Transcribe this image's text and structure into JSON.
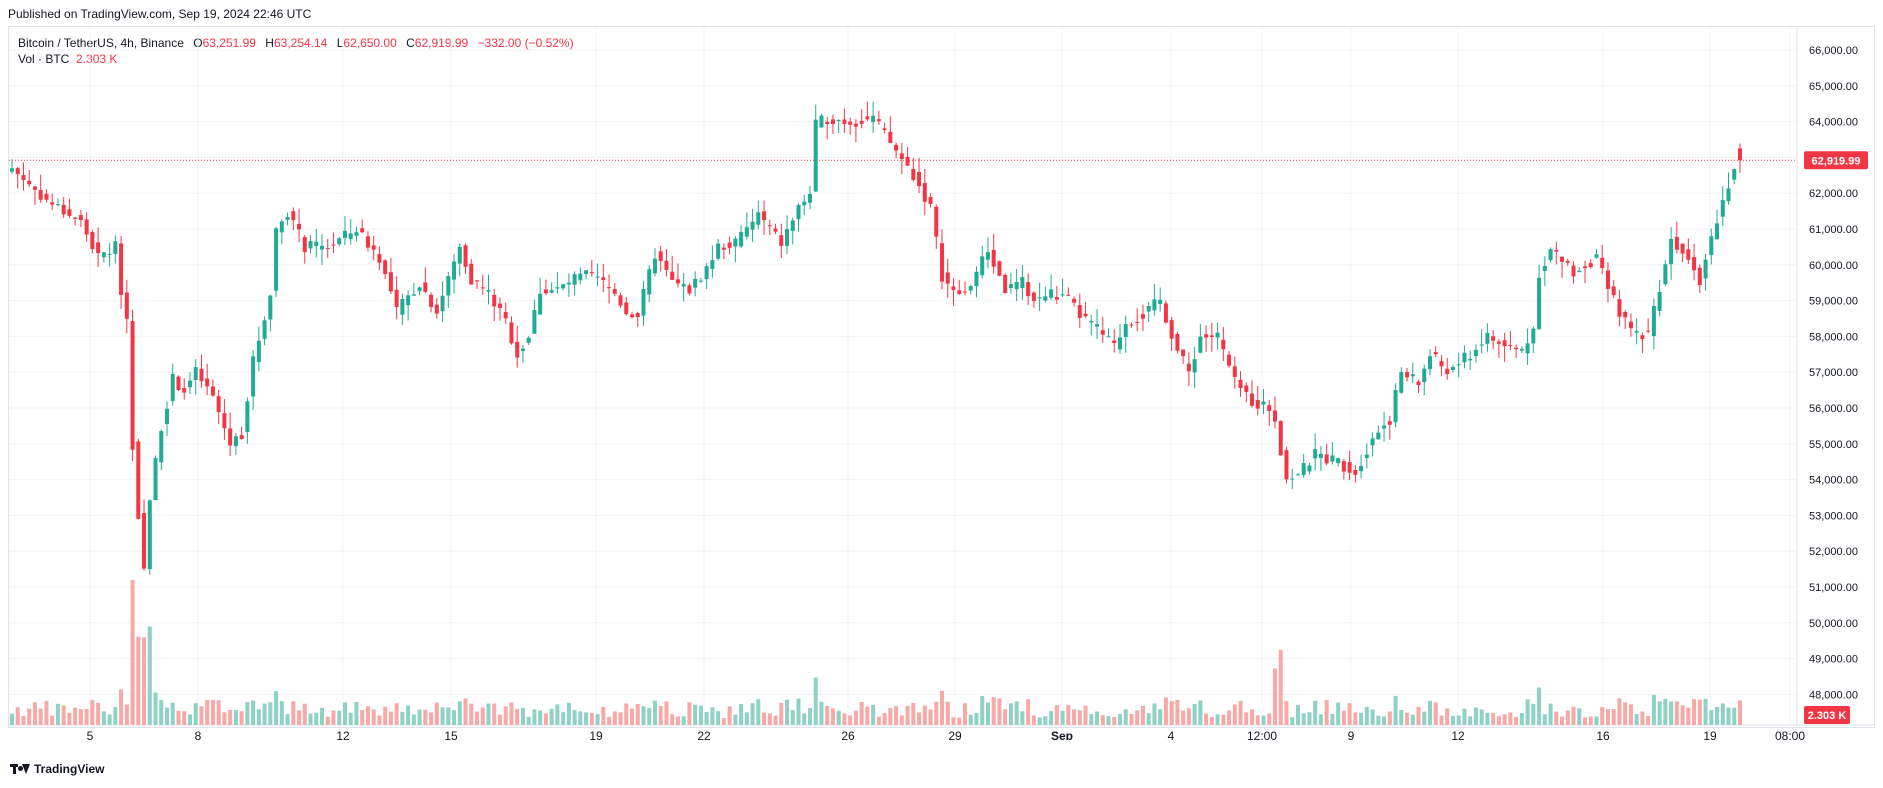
{
  "header": {
    "published": "Published on TradingView.com, Sep 19, 2024 22:46 UTC"
  },
  "legend": {
    "symbol": "Bitcoin / TetherUS, 4h, Binance",
    "o_label": "O",
    "o_value": "63,251.99",
    "h_label": "H",
    "h_value": "63,254.14",
    "l_label": "L",
    "l_value": "62,650.00",
    "c_label": "C",
    "c_value": "62,919.99",
    "change": "−332.00 (−0.52%)",
    "vol_label": "Vol · BTC",
    "vol_value": "2.303 K"
  },
  "footer": {
    "brand": "TradingView"
  },
  "colors": {
    "up": "#22ab94",
    "down": "#f23645",
    "up_vol": "#8fd1c5",
    "down_vol": "#f7a9a7",
    "grid": "#f0f3fa",
    "text": "#131722"
  },
  "chart_data": {
    "type": "candlestick",
    "price_axis_ticks": [
      "66,000.00",
      "65,000.00",
      "64,000.00",
      "63,000.00",
      "62,000.00",
      "61,000.00",
      "60,000.00",
      "59,000.00",
      "58,000.00",
      "57,000.00",
      "56,000.00",
      "55,000.00",
      "54,000.00",
      "53,000.00",
      "52,000.00",
      "51,000.00",
      "50,000.00",
      "49,000.00",
      "48,000.00"
    ],
    "time_axis_ticks": [
      "5",
      "8",
      "12",
      "15",
      "19",
      "22",
      "26",
      "29",
      "Sep",
      "4",
      "12:00",
      "9",
      "12",
      "16",
      "19",
      "08:00"
    ],
    "last_price": "62,919.99",
    "last_volume": "2.303 K",
    "ylim": [
      47700,
      66500
    ],
    "anchors": [
      [
        0,
        62700
      ],
      [
        6,
        61800
      ],
      [
        12,
        61200
      ],
      [
        15,
        60200
      ],
      [
        18,
        60500
      ],
      [
        19,
        59300
      ],
      [
        20,
        58500
      ],
      [
        21,
        55000
      ],
      [
        22,
        53000
      ],
      [
        23,
        51500
      ],
      [
        24,
        53500
      ],
      [
        26,
        55500
      ],
      [
        28,
        56800
      ],
      [
        30,
        56500
      ],
      [
        32,
        57000
      ],
      [
        35,
        56300
      ],
      [
        38,
        55000
      ],
      [
        40,
        55300
      ],
      [
        42,
        57300
      ],
      [
        45,
        59200
      ],
      [
        46,
        61000
      ],
      [
        48,
        61500
      ],
      [
        51,
        60500
      ],
      [
        55,
        60500
      ],
      [
        60,
        61000
      ],
      [
        64,
        60200
      ],
      [
        67,
        58700
      ],
      [
        71,
        59500
      ],
      [
        74,
        58700
      ],
      [
        78,
        60500
      ],
      [
        80,
        59600
      ],
      [
        83,
        59200
      ],
      [
        86,
        58400
      ],
      [
        88,
        57500
      ],
      [
        90,
        58000
      ],
      [
        92,
        59300
      ],
      [
        95,
        59300
      ],
      [
        98,
        59600
      ],
      [
        100,
        59700
      ],
      [
        102,
        59600
      ],
      [
        105,
        59200
      ],
      [
        107,
        58700
      ],
      [
        109,
        58600
      ],
      [
        112,
        60300
      ],
      [
        115,
        59500
      ],
      [
        118,
        59300
      ],
      [
        121,
        59900
      ],
      [
        123,
        60500
      ],
      [
        126,
        60600
      ],
      [
        130,
        61400
      ],
      [
        134,
        60600
      ],
      [
        137,
        61600
      ],
      [
        139,
        62000
      ],
      [
        140,
        63900
      ],
      [
        142,
        64100
      ],
      [
        146,
        64000
      ],
      [
        150,
        64100
      ],
      [
        153,
        63400
      ],
      [
        157,
        62500
      ],
      [
        160,
        61600
      ],
      [
        162,
        59700
      ],
      [
        164,
        59200
      ],
      [
        166,
        59200
      ],
      [
        170,
        60400
      ],
      [
        173,
        59300
      ],
      [
        176,
        59500
      ],
      [
        178,
        59000
      ],
      [
        181,
        59200
      ],
      [
        184,
        59000
      ],
      [
        186,
        58600
      ],
      [
        189,
        58200
      ],
      [
        192,
        57700
      ],
      [
        194,
        58400
      ],
      [
        197,
        58600
      ],
      [
        200,
        59000
      ],
      [
        203,
        57600
      ],
      [
        205,
        57000
      ],
      [
        207,
        58000
      ],
      [
        210,
        58000
      ],
      [
        213,
        56700
      ],
      [
        216,
        56200
      ],
      [
        219,
        56000
      ],
      [
        220,
        55700
      ],
      [
        222,
        54000
      ],
      [
        225,
        54300
      ],
      [
        227,
        54700
      ],
      [
        231,
        54500
      ],
      [
        234,
        54200
      ],
      [
        237,
        55200
      ],
      [
        240,
        55700
      ],
      [
        242,
        57000
      ],
      [
        245,
        56700
      ],
      [
        247,
        57500
      ],
      [
        250,
        57000
      ],
      [
        254,
        57500
      ],
      [
        257,
        58000
      ],
      [
        260,
        57700
      ],
      [
        263,
        57600
      ],
      [
        265,
        58200
      ],
      [
        266,
        59800
      ],
      [
        268,
        60400
      ],
      [
        272,
        59800
      ],
      [
        276,
        60200
      ],
      [
        278,
        59300
      ],
      [
        280,
        58700
      ],
      [
        282,
        58100
      ],
      [
        285,
        58100
      ],
      [
        287,
        59400
      ],
      [
        289,
        60700
      ],
      [
        292,
        60300
      ],
      [
        294,
        59600
      ],
      [
        296,
        60800
      ],
      [
        298,
        61800
      ],
      [
        299,
        62300
      ],
      [
        300,
        62700
      ],
      [
        301,
        62900
      ]
    ]
  }
}
